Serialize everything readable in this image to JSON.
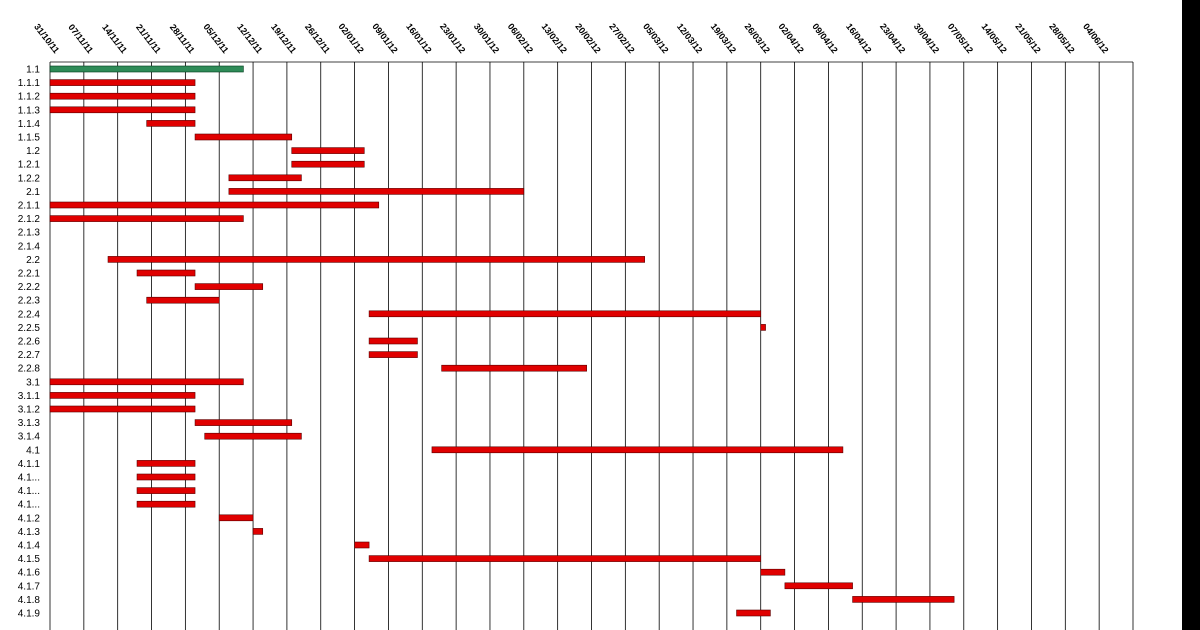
{
  "chart_data": {
    "type": "gantt",
    "title": "",
    "grid": true,
    "date_ticks": [
      "31/10/11",
      "07/11/11",
      "14/11/11",
      "21/11/11",
      "28/11/11",
      "05/12/11",
      "12/12/11",
      "19/12/11",
      "26/12/11",
      "02/01/12",
      "09/01/12",
      "16/01/12",
      "23/01/12",
      "30/01/12",
      "06/02/12",
      "13/02/12",
      "20/02/12",
      "27/02/12",
      "05/03/12",
      "12/03/12",
      "19/03/12",
      "26/03/12",
      "02/04/12",
      "09/04/12",
      "16/04/12",
      "23/04/12",
      "30/04/12",
      "07/05/12",
      "14/05/12",
      "21/05/12",
      "28/05/12",
      "04/06/12"
    ],
    "x_range": [
      "2011-10-31",
      "2012-06-11"
    ],
    "colors": {
      "task": "#e00000",
      "summary": "#2e8b57"
    },
    "tasks": [
      {
        "label": "1.1",
        "start": "2011-10-31",
        "end": "2011-12-10",
        "kind": "summary"
      },
      {
        "label": "1.1.1",
        "start": "2011-10-31",
        "end": "2011-11-30",
        "kind": "task"
      },
      {
        "label": "1.1.2",
        "start": "2011-10-31",
        "end": "2011-11-30",
        "kind": "task"
      },
      {
        "label": "1.1.3",
        "start": "2011-10-31",
        "end": "2011-11-30",
        "kind": "task"
      },
      {
        "label": "1.1.4",
        "start": "2011-11-20",
        "end": "2011-11-30",
        "kind": "task"
      },
      {
        "label": "1.1.5",
        "start": "2011-11-30",
        "end": "2011-12-20",
        "kind": "task"
      },
      {
        "label": "1.2",
        "start": "2011-12-20",
        "end": "2012-01-04",
        "kind": "task"
      },
      {
        "label": "1.2.1",
        "start": "2011-12-20",
        "end": "2012-01-04",
        "kind": "task"
      },
      {
        "label": "1.2.2",
        "start": "2011-12-07",
        "end": "2011-12-22",
        "kind": "task"
      },
      {
        "label": "2.1",
        "start": "2011-12-07",
        "end": "2012-02-06",
        "kind": "task"
      },
      {
        "label": "2.1.1",
        "start": "2011-10-31",
        "end": "2012-01-07",
        "kind": "task"
      },
      {
        "label": "2.1.2",
        "start": "2011-10-31",
        "end": "2011-12-10",
        "kind": "task"
      },
      {
        "label": "2.1.3",
        "start": null,
        "end": null,
        "kind": "task"
      },
      {
        "label": "2.1.4",
        "start": null,
        "end": null,
        "kind": "task"
      },
      {
        "label": "2.2",
        "start": "2011-11-12",
        "end": "2012-03-02",
        "kind": "task"
      },
      {
        "label": "2.2.1",
        "start": "2011-11-18",
        "end": "2011-11-30",
        "kind": "task"
      },
      {
        "label": "2.2.2",
        "start": "2011-11-30",
        "end": "2011-12-14",
        "kind": "task"
      },
      {
        "label": "2.2.3",
        "start": "2011-11-20",
        "end": "2011-12-05",
        "kind": "task"
      },
      {
        "label": "2.2.4",
        "start": "2012-01-05",
        "end": "2012-03-26",
        "kind": "task"
      },
      {
        "label": "2.2.5",
        "start": "2012-03-26",
        "end": "2012-03-27",
        "kind": "task"
      },
      {
        "label": "2.2.6",
        "start": "2012-01-05",
        "end": "2012-01-15",
        "kind": "task"
      },
      {
        "label": "2.2.7",
        "start": "2012-01-05",
        "end": "2012-01-15",
        "kind": "task"
      },
      {
        "label": "2.2.8",
        "start": "2012-01-20",
        "end": "2012-02-19",
        "kind": "task"
      },
      {
        "label": "3.1",
        "start": "2011-10-31",
        "end": "2011-12-10",
        "kind": "task"
      },
      {
        "label": "3.1.1",
        "start": "2011-10-31",
        "end": "2011-11-30",
        "kind": "task"
      },
      {
        "label": "3.1.2",
        "start": "2011-10-31",
        "end": "2011-11-30",
        "kind": "task"
      },
      {
        "label": "3.1.3",
        "start": "2011-11-30",
        "end": "2011-12-20",
        "kind": "task"
      },
      {
        "label": "3.1.4",
        "start": "2011-12-02",
        "end": "2011-12-22",
        "kind": "task"
      },
      {
        "label": "4.1",
        "start": "2012-01-18",
        "end": "2012-04-12",
        "kind": "task"
      },
      {
        "label": "4.1.1",
        "start": "2011-11-18",
        "end": "2011-11-30",
        "kind": "task"
      },
      {
        "label": "4.1...",
        "start": "2011-11-18",
        "end": "2011-11-30",
        "kind": "task"
      },
      {
        "label": "4.1...",
        "start": "2011-11-18",
        "end": "2011-11-30",
        "kind": "task"
      },
      {
        "label": "4.1...",
        "start": "2011-11-18",
        "end": "2011-11-30",
        "kind": "task"
      },
      {
        "label": "4.1.2",
        "start": "2011-12-05",
        "end": "2011-12-12",
        "kind": "task"
      },
      {
        "label": "4.1.3",
        "start": "2011-12-12",
        "end": "2011-12-14",
        "kind": "task"
      },
      {
        "label": "4.1.4",
        "start": "2012-01-02",
        "end": "2012-01-05",
        "kind": "task"
      },
      {
        "label": "4.1.5",
        "start": "2012-01-05",
        "end": "2012-03-26",
        "kind": "task"
      },
      {
        "label": "4.1.6",
        "start": "2012-03-26",
        "end": "2012-03-31",
        "kind": "task"
      },
      {
        "label": "4.1.7",
        "start": "2012-03-31",
        "end": "2012-04-14",
        "kind": "task"
      },
      {
        "label": "4.1.8",
        "start": "2012-04-14",
        "end": "2012-05-05",
        "kind": "task"
      },
      {
        "label": "4.1.9",
        "start": "2012-03-21",
        "end": "2012-03-28",
        "kind": "task"
      }
    ]
  }
}
